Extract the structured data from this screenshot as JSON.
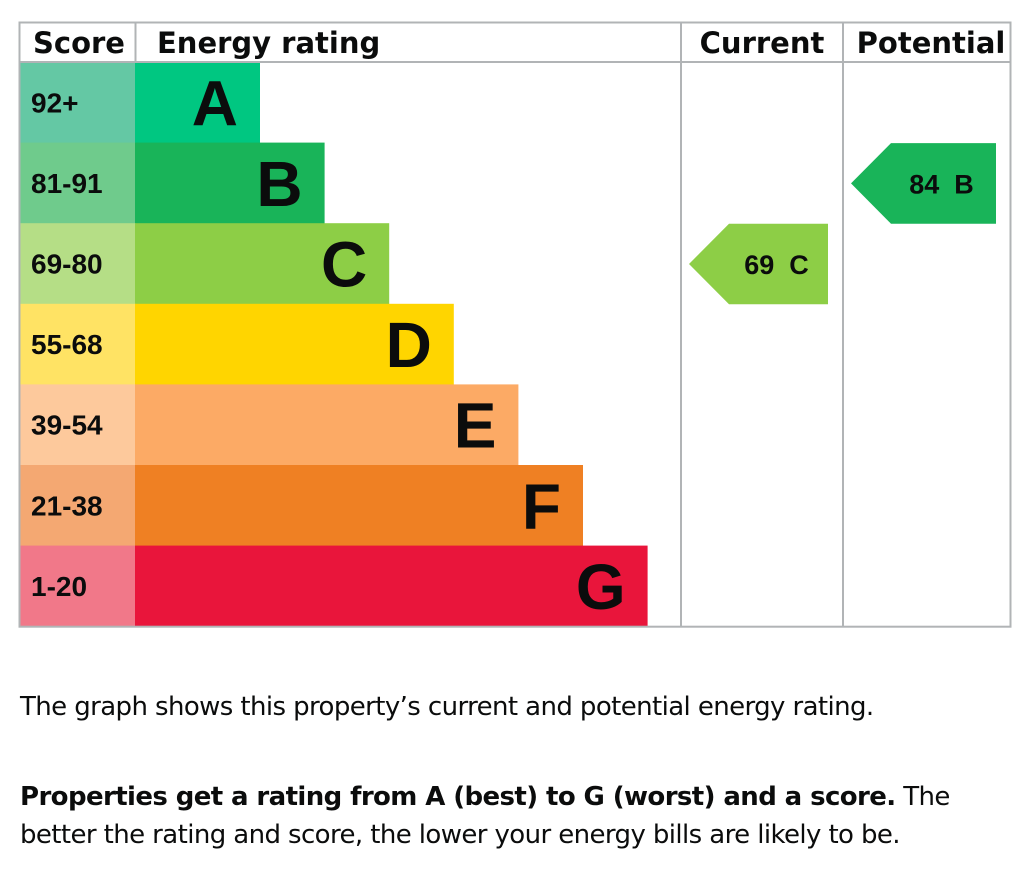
{
  "chart_data": {
    "type": "bar",
    "headers": {
      "score": "Score",
      "rating": "Energy rating",
      "current": "Current",
      "potential": "Potential"
    },
    "bands": [
      {
        "letter": "A",
        "range": "92+",
        "min": 92,
        "max": 100,
        "color": "#00c781",
        "score_bg": "#64c8a4"
      },
      {
        "letter": "B",
        "range": "81-91",
        "min": 81,
        "max": 91,
        "color": "#19b459",
        "score_bg": "#6fcb8c"
      },
      {
        "letter": "C",
        "range": "69-80",
        "min": 69,
        "max": 80,
        "color": "#8dce46",
        "score_bg": "#b5de86"
      },
      {
        "letter": "D",
        "range": "55-68",
        "min": 55,
        "max": 68,
        "color": "#ffd500",
        "score_bg": "#ffe364"
      },
      {
        "letter": "E",
        "range": "39-54",
        "min": 39,
        "max": 54,
        "color": "#fcaa65",
        "score_bg": "#fdc99c"
      },
      {
        "letter": "F",
        "range": "21-38",
        "min": 21,
        "max": 38,
        "color": "#ef8023",
        "score_bg": "#f4a872"
      },
      {
        "letter": "G",
        "range": "1-20",
        "min": 1,
        "max": 20,
        "color": "#e9153b",
        "score_bg": "#f17889"
      }
    ],
    "current": {
      "score": 69,
      "band": "C",
      "color": "#8dce46"
    },
    "potential": {
      "score": 84,
      "band": "B",
      "color": "#19b459"
    }
  },
  "text": {
    "summary": "The graph shows this property’s current and potential energy rating.",
    "note_bold": "Properties get a rating from A (best) to G (worst) and a score.",
    "note_rest": " The better the rating and score, the lower your energy bills are likely to be."
  },
  "colors": {
    "grid": "#b1b4b6",
    "text": "#0b0c0c"
  }
}
